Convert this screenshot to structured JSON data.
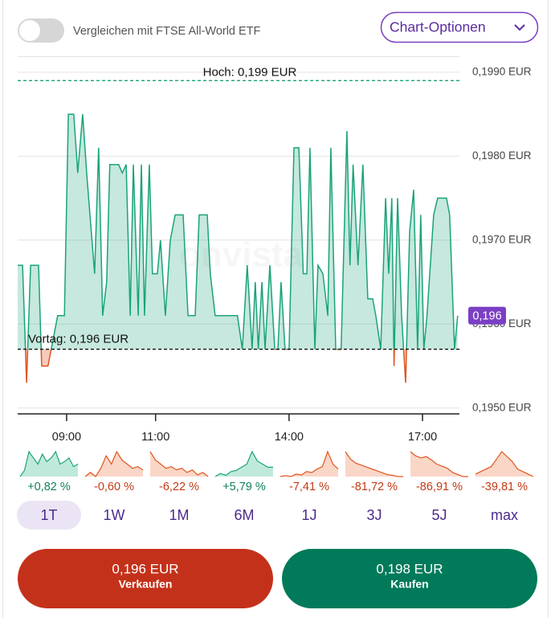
{
  "header": {
    "toggle_label": "Vergleichen mit FTSE All-World ETF",
    "options_button": "Chart-Optionen"
  },
  "chart_data": {
    "type": "line",
    "watermark": "onvista",
    "x": [
      7.9,
      8.01,
      8.1,
      8.19,
      8.37,
      8.44,
      8.58,
      8.69,
      8.8,
      8.95,
      9.04,
      9.16,
      9.25,
      9.36,
      9.45,
      9.63,
      9.72,
      9.81,
      9.9,
      9.97,
      10.17,
      10.25,
      10.34,
      10.43,
      10.5,
      10.61,
      10.68,
      10.75,
      10.86,
      10.93,
      11.04,
      11.11,
      11.22,
      11.33,
      11.44,
      11.62,
      11.73,
      11.89,
      11.98,
      12.16,
      12.23,
      12.34,
      12.84,
      12.95,
      13.06,
      13.17,
      13.24,
      13.31,
      13.39,
      13.46,
      13.57,
      13.68,
      13.75,
      13.82,
      13.91,
      14.0,
      14.11,
      14.22,
      14.32,
      14.4,
      14.47,
      14.58,
      14.65,
      14.76,
      14.87,
      14.94,
      15.05,
      15.17,
      15.3,
      15.37,
      15.44,
      15.55,
      15.66,
      15.77,
      15.88,
      15.95,
      16.06,
      16.17,
      16.24,
      16.31,
      16.36,
      16.44,
      16.53,
      16.62,
      16.71,
      16.8,
      16.89,
      16.96,
      17.03,
      17.1,
      17.25,
      17.34,
      17.54,
      17.61,
      17.72,
      17.79
    ],
    "values": [
      0.1967,
      0.1967,
      0.1953,
      0.1967,
      0.1967,
      0.1955,
      0.1955,
      0.1958,
      0.1961,
      0.1961,
      0.1985,
      0.1985,
      0.1978,
      0.1985,
      0.1978,
      0.1966,
      0.1981,
      0.1961,
      0.1965,
      0.1979,
      0.1979,
      0.1978,
      0.1979,
      0.1961,
      0.1979,
      0.1961,
      0.1979,
      0.1961,
      0.1979,
      0.1966,
      0.1966,
      0.197,
      0.1961,
      0.197,
      0.1973,
      0.1973,
      0.1961,
      0.1961,
      0.1973,
      0.1973,
      0.1966,
      0.1961,
      0.1961,
      0.1957,
      0.1967,
      0.1957,
      0.1965,
      0.1957,
      0.1965,
      0.1957,
      0.1967,
      0.1957,
      0.1957,
      0.1965,
      0.1957,
      0.1957,
      0.1981,
      0.1981,
      0.1966,
      0.1966,
      0.1981,
      0.1957,
      0.1967,
      0.1966,
      0.1961,
      0.1981,
      0.1957,
      0.1957,
      0.1983,
      0.1967,
      0.1979,
      0.1967,
      0.1979,
      0.1963,
      0.1963,
      0.1961,
      0.1957,
      0.1975,
      0.1966,
      0.1975,
      0.1955,
      0.1975,
      0.1961,
      0.1953,
      0.1971,
      0.1976,
      0.1957,
      0.1973,
      0.1957,
      0.1961,
      0.1973,
      0.1975,
      0.1975,
      0.1973,
      0.1957,
      0.1961
    ],
    "color": "#1aa37a",
    "below_color": "#e0541e",
    "xlim": [
      7.9,
      17.83
    ],
    "xticks": [
      {
        "value": 9,
        "label": "09:00"
      },
      {
        "value": 11,
        "label": "11:00"
      },
      {
        "value": 14,
        "label": "14:00"
      },
      {
        "value": 17,
        "label": "17:00"
      }
    ],
    "ylim": [
      0.19493,
      0.19919
    ],
    "yticks": [
      {
        "value": 0.195,
        "label": "0,1950 EUR"
      },
      {
        "value": 0.196,
        "label": "0,1960 EUR"
      },
      {
        "value": 0.197,
        "label": "0,1970 EUR"
      },
      {
        "value": 0.198,
        "label": "0,1980 EUR"
      },
      {
        "value": 0.199,
        "label": "0,1990 EUR"
      }
    ],
    "grid": true,
    "high": {
      "value": 0.1989,
      "label": "Hoch: 0,199 EUR"
    },
    "previous_close": {
      "value": 0.1957,
      "label": "Vortag: 0,196 EUR"
    },
    "price_badge": "0,196"
  },
  "sparklines": [
    {
      "values": [
        40,
        45,
        60,
        55,
        50,
        58,
        52,
        55,
        60,
        50,
        52,
        55,
        48,
        50
      ],
      "change": 0.82,
      "change_label": "+0,82 %"
    },
    {
      "values": [
        30,
        35,
        30,
        40,
        55,
        45,
        60,
        50,
        45,
        40,
        42,
        38
      ],
      "change": -0.6,
      "change_label": "-0,60 %"
    },
    {
      "values": [
        70,
        60,
        55,
        50,
        52,
        48,
        50,
        45,
        48,
        42,
        45,
        40
      ],
      "change": -6.22,
      "change_label": "-6,22 %"
    },
    {
      "values": [
        30,
        35,
        32,
        38,
        40,
        45,
        50,
        70,
        55,
        50,
        45,
        45
      ],
      "change": 5.79,
      "change_label": "+5,79 %"
    },
    {
      "values": [
        30,
        32,
        30,
        35,
        33,
        40,
        38,
        45,
        50,
        80,
        55,
        45
      ],
      "change": -7.41,
      "change_label": "-7,41 %"
    },
    {
      "values": [
        90,
        70,
        60,
        55,
        50,
        45,
        40,
        35,
        30,
        28,
        25,
        25
      ],
      "change": -81.72,
      "change_label": "-81,72 %"
    },
    {
      "values": [
        90,
        80,
        75,
        78,
        70,
        60,
        55,
        50,
        40,
        35,
        30,
        30
      ],
      "change": -86.91,
      "change_label": "-86,91 %"
    },
    {
      "values": [
        30,
        35,
        40,
        45,
        60,
        75,
        65,
        55,
        40,
        35,
        30,
        25
      ],
      "change": -39.81,
      "change_label": "-39,81 %"
    }
  ],
  "periods": [
    "1T",
    "1W",
    "1M",
    "6M",
    "1J",
    "3J",
    "5J",
    "max"
  ],
  "selected_period": 0,
  "sell": {
    "price": "0,196 EUR",
    "label": "Verkaufen"
  },
  "buy": {
    "price": "0,198 EUR",
    "label": "Kaufen"
  }
}
